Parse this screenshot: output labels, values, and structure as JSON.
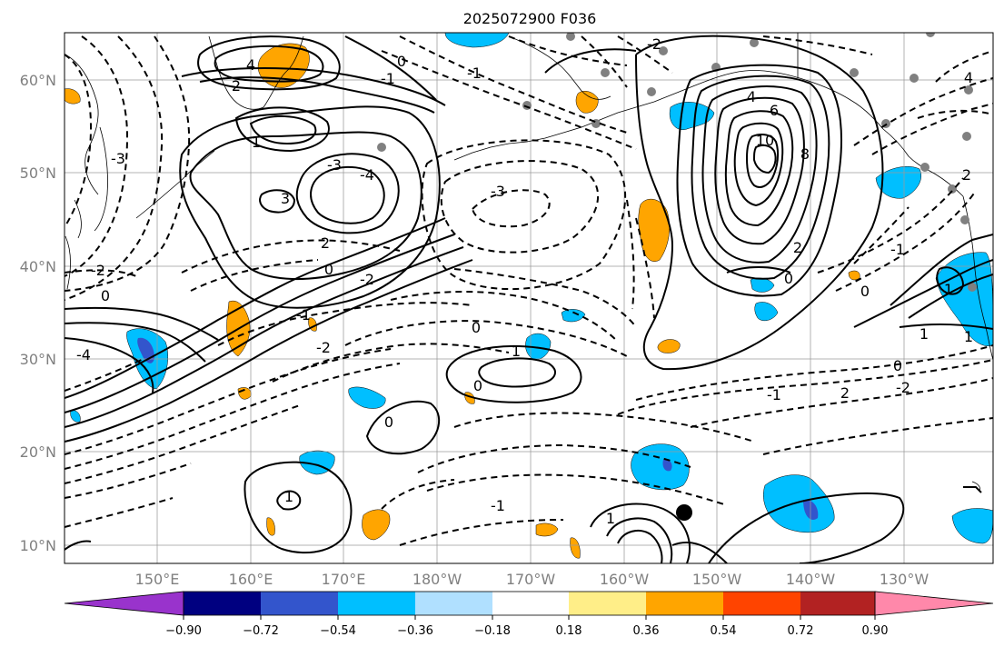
{
  "title": "2025072900 F036",
  "lon_labels": [
    "150°E",
    "160°E",
    "170°E",
    "180°W",
    "170°W",
    "160°W",
    "150°W",
    "140°W",
    "130°W"
  ],
  "lat_labels": [
    "60°N",
    "50°N",
    "40°N",
    "30°N",
    "20°N",
    "10°N"
  ],
  "colorbar": {
    "ticks": [
      "−0.90",
      "−0.72",
      "−0.54",
      "−0.36",
      "−0.18",
      "0.18",
      "0.36",
      "0.54",
      "0.72",
      "0.90"
    ],
    "colors": [
      "#9933cc",
      "#000080",
      "#3355cc",
      "#00bfff",
      "#b0e0ff",
      "#ffffff",
      "#ffee88",
      "#ffa500",
      "#ff4400",
      "#b22222",
      "#ff88aa"
    ]
  },
  "contour_labels": [
    "10",
    "8",
    "6",
    "4",
    "2",
    "1",
    "0",
    "-1",
    "-2",
    "-3",
    "-4",
    "-3",
    "-1",
    "0",
    "1",
    "2",
    "4",
    "3",
    "0",
    "-1",
    "-2",
    "0",
    "1",
    "0",
    "0",
    "-1",
    "1",
    "1",
    "0",
    "-2",
    "-3",
    "2",
    "-2",
    "2",
    "0",
    "-1",
    "-2",
    "1",
    "0",
    "2",
    "1",
    "4",
    "-4",
    "-1"
  ],
  "colors": {
    "positive": "#ffa500",
    "negative": "#00bfff",
    "strong_negative": "#3355cc",
    "station": "#808080",
    "storm_marker": "#000000"
  }
}
